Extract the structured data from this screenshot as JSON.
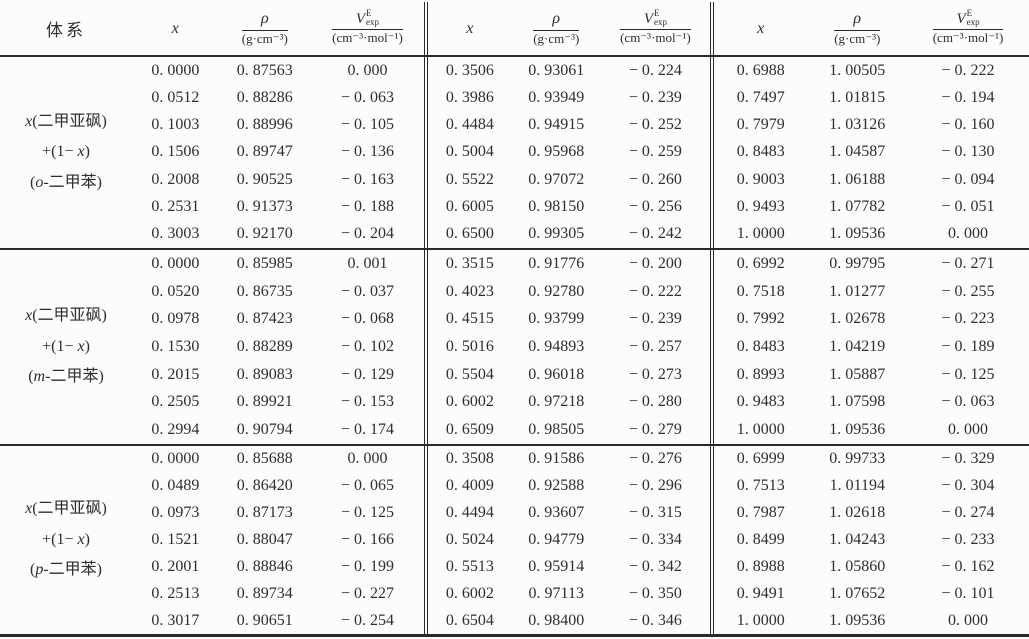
{
  "header": {
    "system": "体系",
    "x": "x",
    "rho_num": "ρ",
    "rho_den": "(g·cm⁻³)",
    "v_base": "V",
    "v_sup": "E",
    "v_sub": "exp",
    "v_den": "(cm⁻³·mol⁻¹)"
  },
  "groups": [
    {
      "sys": {
        "x": "x",
        "compound": "(二甲亚砜)",
        "plus": "+(1− ",
        "x2": "x",
        "close": ")",
        "open": "(",
        "isomer": "o",
        "tail": "-二甲苯)"
      },
      "blocks": [
        [
          [
            "0. 0000",
            "0. 87563",
            "0. 000"
          ],
          [
            "0. 0512",
            "0. 88286",
            "− 0. 063"
          ],
          [
            "0. 1003",
            "0. 88996",
            "− 0. 105"
          ],
          [
            "0. 1506",
            "0. 89747",
            "− 0. 136"
          ],
          [
            "0. 2008",
            "0. 90525",
            "− 0. 163"
          ],
          [
            "0. 2531",
            "0. 91373",
            "− 0. 188"
          ],
          [
            "0. 3003",
            "0. 92170",
            "− 0. 204"
          ]
        ],
        [
          [
            "0. 3506",
            "0. 93061",
            "− 0. 224"
          ],
          [
            "0. 3986",
            "0. 93949",
            "− 0. 239"
          ],
          [
            "0. 4484",
            "0. 94915",
            "− 0. 252"
          ],
          [
            "0. 5004",
            "0. 95968",
            "− 0. 259"
          ],
          [
            "0. 5522",
            "0. 97072",
            "− 0. 260"
          ],
          [
            "0. 6005",
            "0. 98150",
            "− 0. 256"
          ],
          [
            "0. 6500",
            "0. 99305",
            "− 0. 242"
          ]
        ],
        [
          [
            "0. 6988",
            "1. 00505",
            "− 0. 222"
          ],
          [
            "0. 7497",
            "1. 01815",
            "− 0. 194"
          ],
          [
            "0. 7979",
            "1. 03126",
            "− 0. 160"
          ],
          [
            "0. 8483",
            "1. 04587",
            "− 0. 130"
          ],
          [
            "0. 9003",
            "1. 06188",
            "− 0. 094"
          ],
          [
            "0. 9493",
            "1. 07782",
            "− 0. 051"
          ],
          [
            "1. 0000",
            "1. 09536",
            "0. 000"
          ]
        ]
      ]
    },
    {
      "sys": {
        "x": "x",
        "compound": "(二甲亚砜)",
        "plus": "+(1− ",
        "x2": "x",
        "close": ")",
        "open": "(",
        "isomer": "m",
        "tail": "-二甲苯)"
      },
      "blocks": [
        [
          [
            "0. 0000",
            "0. 85985",
            "0. 001"
          ],
          [
            "0. 0520",
            "0. 86735",
            "− 0. 037"
          ],
          [
            "0. 0978",
            "0. 87423",
            "− 0. 068"
          ],
          [
            "0. 1530",
            "0. 88289",
            "− 0. 102"
          ],
          [
            "0. 2015",
            "0. 89083",
            "− 0. 129"
          ],
          [
            "0. 2505",
            "0. 89921",
            "− 0. 153"
          ],
          [
            "0. 2994",
            "0. 90794",
            "− 0. 174"
          ]
        ],
        [
          [
            "0. 3515",
            "0. 91776",
            "− 0. 200"
          ],
          [
            "0. 4023",
            "0. 92780",
            "− 0. 222"
          ],
          [
            "0. 4515",
            "0. 93799",
            "− 0. 239"
          ],
          [
            "0. 5016",
            "0. 94893",
            "− 0. 257"
          ],
          [
            "0. 5504",
            "0. 96018",
            "− 0. 273"
          ],
          [
            "0. 6002",
            "0. 97218",
            "− 0. 280"
          ],
          [
            "0. 6509",
            "0. 98505",
            "− 0. 279"
          ]
        ],
        [
          [
            "0. 6992",
            "0. 99795",
            "− 0. 271"
          ],
          [
            "0. 7518",
            "1. 01277",
            "− 0. 255"
          ],
          [
            "0. 7992",
            "1. 02678",
            "− 0. 223"
          ],
          [
            "0. 8483",
            "1. 04219",
            "− 0. 189"
          ],
          [
            "0. 8993",
            "1. 05887",
            "− 0. 125"
          ],
          [
            "0. 9483",
            "1. 07598",
            "− 0. 063"
          ],
          [
            "1. 0000",
            "1. 09536",
            "0. 000"
          ]
        ]
      ]
    },
    {
      "sys": {
        "x": "x",
        "compound": "(二甲亚砜)",
        "plus": "+(1− ",
        "x2": "x",
        "close": ")",
        "open": "(",
        "isomer": "p",
        "tail": "-二甲苯)"
      },
      "blocks": [
        [
          [
            "0. 0000",
            "0. 85688",
            "0. 000"
          ],
          [
            "0. 0489",
            "0. 86420",
            "− 0. 065"
          ],
          [
            "0. 0973",
            "0. 87173",
            "− 0. 125"
          ],
          [
            "0. 1521",
            "0. 88047",
            "− 0. 166"
          ],
          [
            "0. 2001",
            "0. 88846",
            "− 0. 199"
          ],
          [
            "0. 2513",
            "0. 89734",
            "− 0. 227"
          ],
          [
            "0. 3017",
            "0. 90651",
            "− 0. 254"
          ]
        ],
        [
          [
            "0. 3508",
            "0. 91586",
            "− 0. 276"
          ],
          [
            "0. 4009",
            "0. 92588",
            "− 0. 296"
          ],
          [
            "0. 4494",
            "0. 93607",
            "− 0. 315"
          ],
          [
            "0. 5024",
            "0. 94779",
            "− 0. 334"
          ],
          [
            "0. 5513",
            "0. 95914",
            "− 0. 342"
          ],
          [
            "0. 6002",
            "0. 97113",
            "− 0. 350"
          ],
          [
            "0. 6504",
            "0. 98400",
            "− 0. 346"
          ]
        ],
        [
          [
            "0. 6999",
            "0. 99733",
            "− 0. 329"
          ],
          [
            "0. 7513",
            "1. 01194",
            "− 0. 304"
          ],
          [
            "0. 7987",
            "1. 02618",
            "− 0. 274"
          ],
          [
            "0. 8499",
            "1. 04243",
            "− 0. 233"
          ],
          [
            "0. 8988",
            "1. 05860",
            "− 0. 162"
          ],
          [
            "0. 9491",
            "1. 07652",
            "− 0. 101"
          ],
          [
            "1. 0000",
            "1. 09536",
            "0. 000"
          ]
        ]
      ]
    }
  ]
}
